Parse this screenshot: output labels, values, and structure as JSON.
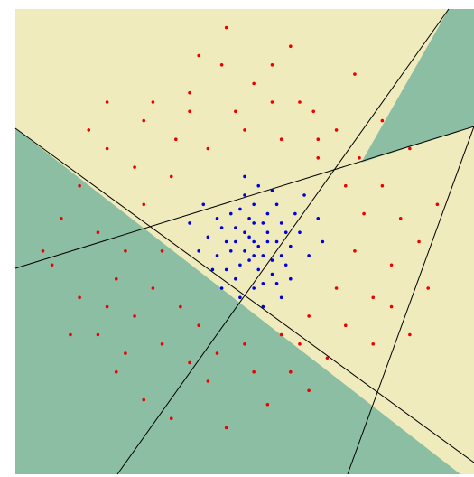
{
  "chart_data": {
    "type": "scatter",
    "xlim": [
      0,
      100
    ],
    "ylim": [
      0,
      100
    ],
    "series": [
      {
        "color": "#ee0000",
        "x": [
          30,
          45,
          56,
          38,
          65,
          70,
          20,
          14,
          10,
          8,
          14,
          18,
          22,
          28,
          34,
          42,
          55,
          60,
          68,
          72,
          78,
          82,
          84,
          80,
          75,
          88,
          90,
          86,
          62,
          48,
          35,
          26,
          18,
          22,
          26,
          32,
          40,
          44,
          50,
          58,
          64,
          70,
          74,
          76,
          72,
          66,
          58,
          50,
          42,
          34,
          28,
          24,
          30,
          36,
          28,
          40,
          52,
          60,
          74,
          46,
          20,
          16,
          6,
          12,
          24,
          38,
          46,
          64,
          78,
          82,
          92,
          86,
          80,
          38,
          56,
          66,
          32,
          20,
          52,
          62
        ],
        "values": [
          80,
          88,
          88,
          82,
          78,
          74,
          70,
          62,
          55,
          45,
          38,
          30,
          22,
          16,
          12,
          20,
          15,
          22,
          25,
          32,
          38,
          45,
          55,
          62,
          68,
          50,
          40,
          30,
          80,
          78,
          72,
          66,
          52,
          42,
          34,
          28,
          32,
          26,
          28,
          30,
          34,
          40,
          48,
          56,
          62,
          68,
          72,
          74,
          70,
          64,
          58,
          48,
          40,
          36,
          76,
          90,
          84,
          92,
          86,
          96,
          80,
          74,
          48,
          30,
          26,
          24,
          10,
          18,
          28,
          36,
          58,
          70,
          76,
          78,
          80,
          72,
          48,
          36,
          22,
          28
        ]
      },
      {
        "color": "#0000dd",
        "x": [
          52,
          55,
          50,
          54,
          48,
          57,
          51,
          46,
          53,
          58,
          49,
          56,
          52,
          44,
          60,
          47,
          54,
          50,
          55,
          59,
          45,
          53,
          51,
          57,
          48,
          62,
          42,
          56,
          50,
          54,
          47,
          58,
          52,
          61,
          44,
          53,
          49,
          64,
          40,
          55,
          51,
          46,
          59,
          52,
          48,
          57,
          43,
          63,
          54,
          38,
          50,
          66,
          45,
          60,
          56,
          41,
          52,
          49,
          58,
          67
        ],
        "values": [
          50,
          52,
          48,
          47,
          53,
          50,
          55,
          50,
          44,
          54,
          45,
          46,
          58,
          47,
          49,
          56,
          41,
          52,
          56,
          45,
          53,
          49,
          46,
          58,
          42,
          52,
          51,
          43,
          60,
          54,
          48,
          47,
          40,
          56,
          55,
          62,
          38,
          47,
          48,
          50,
          51,
          44,
          52,
          54,
          50,
          41,
          44,
          60,
          36,
          54,
          64,
          55,
          40,
          42,
          61,
          58,
          47,
          57,
          38,
          50
        ]
      }
    ]
  }
}
